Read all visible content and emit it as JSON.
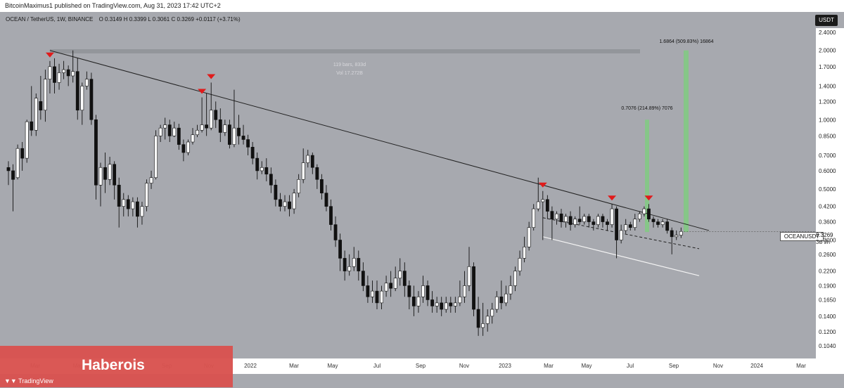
{
  "header": {
    "published": "BitcoinMaximus1 published on TradingView.com,  Aug 31, 2023 17:42 UTC+2"
  },
  "symbol": {
    "line": "OCEAN / TetherUS, 1W, BINANCE",
    "ohlc": "O 0.3149  H 0.3399  L 0.3061  C 0.3269  +0.0117 (+3.71%)"
  },
  "quote_button": "USDT",
  "ticker_label": "OCEANUSDT",
  "current_price": "0.3269",
  "countdown": "3d 9h",
  "banner": {
    "title": "Haberois",
    "logo": "TradingView",
    "logo_icon": "tradingview-logo-icon"
  },
  "colors": {
    "background": "#a7a9af",
    "up_candle": "#ffffff",
    "down_candle": "#111111",
    "marker": "#e01b1b",
    "projection": "#7bd07b",
    "banner": "#d9534f"
  },
  "chart_data": {
    "type": "candlestick",
    "title": "",
    "scale": "log",
    "ylim": [
      0.095,
      2.5
    ],
    "y_ticks": [
      "2.4000",
      "2.0000",
      "1.7000",
      "1.4000",
      "1.2000",
      "1.0000",
      "0.8500",
      "0.7000",
      "0.6000",
      "0.5000",
      "0.4200",
      "0.3600",
      "0.3000",
      "0.2600",
      "0.2200",
      "0.1900",
      "0.1650",
      "0.1400",
      "0.1200",
      "0.1040"
    ],
    "x_ticks": [
      "Mar",
      "May",
      "Jul",
      "Sep",
      "Nov",
      "2022",
      "Mar",
      "May",
      "Jul",
      "Sep",
      "Nov",
      "2023",
      "Mar",
      "May",
      "Jul",
      "Sep",
      "Nov",
      "2024",
      "Mar"
    ],
    "x_unit": "weeks since first candle",
    "candles": [
      [
        0,
        0.62,
        0.6,
        0.66,
        0.52
      ],
      [
        1,
        0.6,
        0.55,
        0.64,
        0.4
      ],
      [
        2,
        0.56,
        0.75,
        0.78,
        0.55
      ],
      [
        3,
        0.75,
        0.68,
        0.8,
        0.6
      ],
      [
        4,
        0.68,
        0.98,
        1.0,
        0.65
      ],
      [
        5,
        0.98,
        0.9,
        1.4,
        0.85
      ],
      [
        6,
        0.9,
        1.24,
        1.3,
        0.85
      ],
      [
        7,
        1.2,
        1.1,
        1.55,
        1.0
      ],
      [
        8,
        1.1,
        1.5,
        1.65,
        0.98
      ],
      [
        9,
        1.5,
        1.7,
        1.8,
        1.3
      ],
      [
        10,
        1.7,
        1.45,
        1.85,
        1.3
      ],
      [
        11,
        1.45,
        1.6,
        1.75,
        1.35
      ],
      [
        12,
        1.6,
        1.65,
        1.8,
        1.5
      ],
      [
        13,
        1.65,
        1.55,
        1.72,
        1.4
      ],
      [
        14,
        1.55,
        1.62,
        2.0,
        1.45
      ],
      [
        15,
        1.62,
        1.1,
        1.85,
        1.0
      ],
      [
        16,
        1.1,
        1.4,
        1.45,
        0.95
      ],
      [
        17,
        1.4,
        1.5,
        1.62,
        1.35
      ],
      [
        18,
        1.5,
        1.0,
        1.6,
        0.95
      ],
      [
        19,
        1.0,
        0.52,
        1.05,
        0.45
      ],
      [
        20,
        0.52,
        0.62,
        0.65,
        0.42
      ],
      [
        21,
        0.62,
        0.55,
        0.72,
        0.48
      ],
      [
        22,
        0.55,
        0.64,
        0.69,
        0.52
      ],
      [
        23,
        0.64,
        0.52,
        0.66,
        0.45
      ],
      [
        24,
        0.52,
        0.42,
        0.56,
        0.34
      ],
      [
        25,
        0.42,
        0.45,
        0.48,
        0.38
      ],
      [
        26,
        0.45,
        0.41,
        0.47,
        0.38
      ],
      [
        27,
        0.41,
        0.44,
        0.46,
        0.38
      ],
      [
        28,
        0.44,
        0.38,
        0.46,
        0.34
      ],
      [
        29,
        0.38,
        0.42,
        0.44,
        0.35
      ],
      [
        30,
        0.42,
        0.53,
        0.55,
        0.4
      ],
      [
        31,
        0.53,
        0.56,
        0.6,
        0.5
      ],
      [
        32,
        0.56,
        0.85,
        0.9,
        0.55
      ],
      [
        33,
        0.85,
        0.92,
        0.95,
        0.8
      ],
      [
        34,
        0.92,
        0.95,
        1.02,
        0.82
      ],
      [
        35,
        0.95,
        0.85,
        1.0,
        0.8
      ],
      [
        36,
        0.85,
        0.92,
        0.98,
        0.84
      ],
      [
        37,
        0.92,
        0.78,
        0.96,
        0.74
      ],
      [
        38,
        0.78,
        0.72,
        0.82,
        0.66
      ],
      [
        39,
        0.72,
        0.8,
        0.82,
        0.7
      ],
      [
        40,
        0.8,
        0.86,
        0.92,
        0.78
      ],
      [
        41,
        0.86,
        0.9,
        0.95,
        0.84
      ],
      [
        42,
        0.9,
        0.95,
        1.25,
        0.88
      ],
      [
        43,
        0.95,
        0.92,
        1.3,
        0.85
      ],
      [
        44,
        0.92,
        1.1,
        1.45,
        0.9
      ],
      [
        45,
        1.1,
        1.0,
        1.2,
        0.92
      ],
      [
        46,
        1.0,
        0.88,
        1.12,
        0.8
      ],
      [
        47,
        0.88,
        0.95,
        1.0,
        0.85
      ],
      [
        48,
        0.95,
        0.78,
        1.0,
        0.75
      ],
      [
        49,
        0.78,
        0.92,
        1.35,
        0.76
      ],
      [
        50,
        0.92,
        0.85,
        1.05,
        0.78
      ],
      [
        51,
        0.85,
        0.82,
        0.95,
        0.78
      ],
      [
        52,
        0.82,
        0.76,
        0.86,
        0.7
      ],
      [
        53,
        0.76,
        0.68,
        0.8,
        0.64
      ],
      [
        54,
        0.68,
        0.6,
        0.72,
        0.55
      ],
      [
        55,
        0.6,
        0.62,
        0.66,
        0.58
      ],
      [
        56,
        0.62,
        0.58,
        0.68,
        0.54
      ],
      [
        57,
        0.58,
        0.52,
        0.62,
        0.48
      ],
      [
        58,
        0.52,
        0.45,
        0.55,
        0.42
      ],
      [
        59,
        0.45,
        0.42,
        0.48,
        0.4
      ],
      [
        60,
        0.42,
        0.44,
        0.47,
        0.4
      ],
      [
        61,
        0.44,
        0.41,
        0.47,
        0.38
      ],
      [
        62,
        0.41,
        0.48,
        0.5,
        0.39
      ],
      [
        63,
        0.48,
        0.55,
        0.58,
        0.46
      ],
      [
        64,
        0.55,
        0.65,
        0.75,
        0.53
      ],
      [
        65,
        0.65,
        0.7,
        0.74,
        0.62
      ],
      [
        66,
        0.7,
        0.62,
        0.72,
        0.58
      ],
      [
        67,
        0.62,
        0.55,
        0.64,
        0.5
      ],
      [
        68,
        0.55,
        0.48,
        0.58,
        0.45
      ],
      [
        69,
        0.48,
        0.42,
        0.52,
        0.4
      ],
      [
        70,
        0.42,
        0.35,
        0.45,
        0.33
      ],
      [
        71,
        0.35,
        0.3,
        0.38,
        0.28
      ],
      [
        72,
        0.3,
        0.25,
        0.32,
        0.22
      ],
      [
        73,
        0.25,
        0.22,
        0.27,
        0.2
      ],
      [
        74,
        0.22,
        0.23,
        0.26,
        0.21
      ],
      [
        75,
        0.23,
        0.25,
        0.28,
        0.22
      ],
      [
        76,
        0.25,
        0.22,
        0.27,
        0.2
      ],
      [
        77,
        0.22,
        0.19,
        0.24,
        0.18
      ],
      [
        78,
        0.19,
        0.17,
        0.21,
        0.16
      ],
      [
        79,
        0.17,
        0.18,
        0.2,
        0.16
      ],
      [
        80,
        0.18,
        0.16,
        0.2,
        0.15
      ],
      [
        81,
        0.16,
        0.18,
        0.19,
        0.15
      ],
      [
        82,
        0.18,
        0.195,
        0.21,
        0.17
      ],
      [
        83,
        0.195,
        0.185,
        0.22,
        0.17
      ],
      [
        84,
        0.185,
        0.205,
        0.23,
        0.18
      ],
      [
        85,
        0.205,
        0.22,
        0.25,
        0.19
      ],
      [
        86,
        0.22,
        0.19,
        0.24,
        0.17
      ],
      [
        87,
        0.19,
        0.17,
        0.2,
        0.15
      ],
      [
        88,
        0.17,
        0.155,
        0.19,
        0.14
      ],
      [
        89,
        0.155,
        0.17,
        0.18,
        0.145
      ],
      [
        90,
        0.17,
        0.19,
        0.21,
        0.16
      ],
      [
        91,
        0.19,
        0.165,
        0.2,
        0.155
      ],
      [
        92,
        0.165,
        0.155,
        0.18,
        0.145
      ],
      [
        93,
        0.155,
        0.16,
        0.17,
        0.145
      ],
      [
        94,
        0.16,
        0.15,
        0.17,
        0.14
      ],
      [
        95,
        0.15,
        0.16,
        0.17,
        0.145
      ],
      [
        96,
        0.16,
        0.155,
        0.17,
        0.145
      ],
      [
        97,
        0.155,
        0.16,
        0.17,
        0.145
      ],
      [
        98,
        0.16,
        0.17,
        0.2,
        0.155
      ],
      [
        99,
        0.17,
        0.19,
        0.22,
        0.16
      ],
      [
        100,
        0.19,
        0.23,
        0.28,
        0.18
      ],
      [
        101,
        0.23,
        0.15,
        0.24,
        0.14
      ],
      [
        102,
        0.15,
        0.125,
        0.17,
        0.115
      ],
      [
        103,
        0.125,
        0.13,
        0.16,
        0.115
      ],
      [
        104,
        0.13,
        0.14,
        0.15,
        0.12
      ],
      [
        105,
        0.14,
        0.15,
        0.16,
        0.13
      ],
      [
        106,
        0.15,
        0.17,
        0.18,
        0.145
      ],
      [
        107,
        0.17,
        0.16,
        0.2,
        0.15
      ],
      [
        108,
        0.16,
        0.175,
        0.19,
        0.155
      ],
      [
        109,
        0.175,
        0.19,
        0.21,
        0.165
      ],
      [
        110,
        0.19,
        0.22,
        0.23,
        0.18
      ],
      [
        111,
        0.22,
        0.25,
        0.27,
        0.21
      ],
      [
        112,
        0.25,
        0.28,
        0.31,
        0.24
      ],
      [
        113,
        0.28,
        0.34,
        0.36,
        0.27
      ],
      [
        114,
        0.34,
        0.41,
        0.43,
        0.33
      ],
      [
        115,
        0.41,
        0.44,
        0.56,
        0.4
      ],
      [
        116,
        0.44,
        0.45,
        0.49,
        0.3
      ],
      [
        117,
        0.45,
        0.4,
        0.47,
        0.37
      ],
      [
        118,
        0.4,
        0.37,
        0.42,
        0.3
      ],
      [
        119,
        0.37,
        0.39,
        0.4,
        0.35
      ],
      [
        120,
        0.39,
        0.36,
        0.41,
        0.34
      ],
      [
        121,
        0.36,
        0.38,
        0.39,
        0.34
      ],
      [
        122,
        0.38,
        0.35,
        0.4,
        0.33
      ],
      [
        123,
        0.35,
        0.37,
        0.38,
        0.34
      ],
      [
        124,
        0.37,
        0.36,
        0.42,
        0.35
      ],
      [
        125,
        0.36,
        0.38,
        0.39,
        0.35
      ],
      [
        126,
        0.38,
        0.36,
        0.39,
        0.34
      ],
      [
        127,
        0.36,
        0.35,
        0.37,
        0.33
      ],
      [
        128,
        0.35,
        0.38,
        0.39,
        0.34
      ],
      [
        129,
        0.38,
        0.36,
        0.39,
        0.34
      ],
      [
        130,
        0.36,
        0.35,
        0.37,
        0.33
      ],
      [
        131,
        0.35,
        0.41,
        0.43,
        0.34
      ],
      [
        132,
        0.41,
        0.3,
        0.42,
        0.25
      ],
      [
        133,
        0.3,
        0.33,
        0.35,
        0.29
      ],
      [
        134,
        0.33,
        0.35,
        0.37,
        0.32
      ],
      [
        135,
        0.35,
        0.34,
        0.36,
        0.33
      ],
      [
        136,
        0.34,
        0.37,
        0.39,
        0.33
      ],
      [
        137,
        0.37,
        0.39,
        0.4,
        0.36
      ],
      [
        138,
        0.39,
        0.41,
        0.42,
        0.38
      ],
      [
        139,
        0.41,
        0.37,
        0.43,
        0.36
      ],
      [
        140,
        0.37,
        0.36,
        0.38,
        0.34
      ],
      [
        141,
        0.36,
        0.35,
        0.37,
        0.34
      ],
      [
        142,
        0.35,
        0.36,
        0.37,
        0.34
      ],
      [
        143,
        0.36,
        0.33,
        0.37,
        0.32
      ],
      [
        144,
        0.33,
        0.31,
        0.34,
        0.26
      ],
      [
        145,
        0.31,
        0.315,
        0.33,
        0.3
      ],
      [
        146,
        0.3149,
        0.3269,
        0.3399,
        0.3061
      ]
    ],
    "peak_markers": [
      9,
      42,
      44,
      116,
      131,
      139
    ],
    "annotations": [
      {
        "label": "119 bars, 833d",
        "sub": "Vol 17.272B"
      },
      {
        "label": "0.7076 (214.89%) 7076"
      },
      {
        "label": "1.6864 (509.83%) 16864"
      }
    ]
  }
}
